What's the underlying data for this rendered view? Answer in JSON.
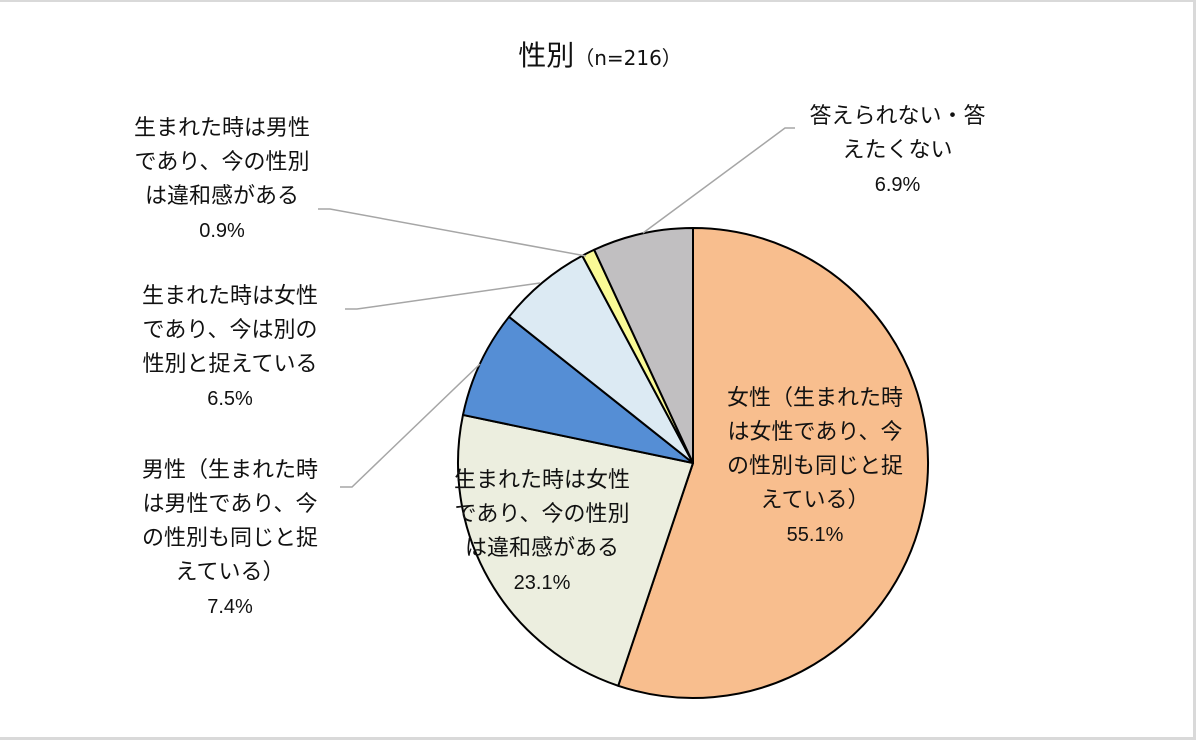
{
  "title": {
    "main": "性別",
    "sub": "（n=216）"
  },
  "chart_data": {
    "type": "pie",
    "title": "性別（n=216）",
    "start_angle": "12 o'clock, clockwise",
    "slices": [
      {
        "label": "女性（生まれた時は女性であり、今の性別も同じと捉えている）",
        "value": 55.1,
        "color": "#F8BE8E"
      },
      {
        "label": "生まれた時は女性であり、今の性別は違和感がある",
        "value": 23.1,
        "color": "#ECEEDF"
      },
      {
        "label": "男性（生まれた時は男性であり、今の性別も同じと捉えている）",
        "value": 7.4,
        "color": "#558ED5"
      },
      {
        "label": "生まれた時は女性であり、今は別の性別と捉えている",
        "value": 6.5,
        "color": "#DCEAF3"
      },
      {
        "label": "生まれた時は男性であり、今の性別は違和感がある",
        "value": 0.9,
        "color": "#FAFA96"
      },
      {
        "label": "答えられない・答えたくない",
        "value": 6.9,
        "color": "#C1BFC1"
      }
    ]
  },
  "labels": {
    "female": {
      "lines": [
        "女性（生まれた時",
        "は女性であり、今",
        "の性別も同じと捉",
        "えている）"
      ],
      "pct": "55.1%"
    },
    "female_discomfort": {
      "lines": [
        "生まれた時は女性",
        "であり、今の性別",
        "は違和感がある"
      ],
      "pct": "23.1%"
    },
    "male": {
      "lines": [
        "男性（生まれた時",
        "は男性であり、今",
        "の性別も同じと捉",
        "えている）"
      ],
      "pct": "7.4%"
    },
    "female_other": {
      "lines": [
        "生まれた時は女性",
        "であり、今は別の",
        "性別と捉えている"
      ],
      "pct": "6.5%"
    },
    "male_discomfort": {
      "lines": [
        "生まれた時は男性",
        "であり、今の性別",
        "は違和感がある"
      ],
      "pct": "0.9%"
    },
    "no_answer": {
      "lines": [
        "答えられない・答",
        "えたくない"
      ],
      "pct": "6.9%"
    }
  }
}
